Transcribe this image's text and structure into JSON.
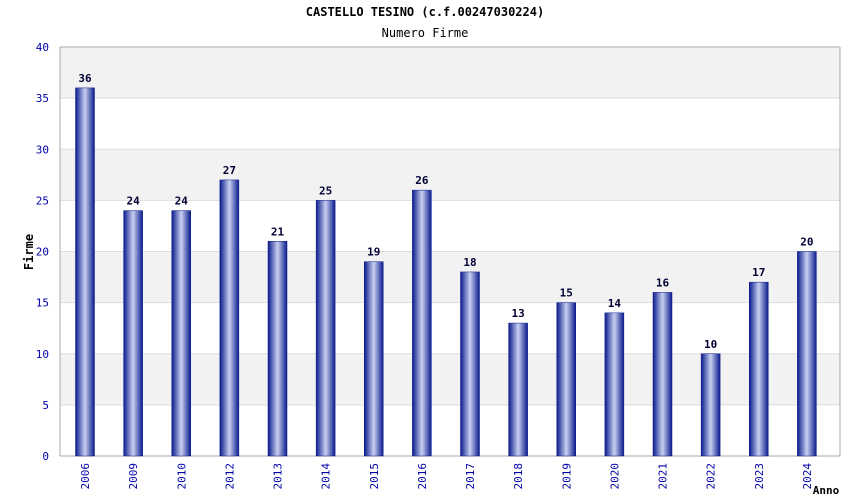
{
  "chart_data": {
    "type": "bar",
    "title": "CASTELLO TESINO (c.f.00247030224)",
    "subtitle": "Numero Firme",
    "xlabel": "Anno",
    "ylabel": "Firme",
    "ylim": [
      0,
      40
    ],
    "yticks": [
      0,
      5,
      10,
      15,
      20,
      25,
      30,
      35,
      40
    ],
    "categories": [
      "2006",
      "2009",
      "2010",
      "2012",
      "2013",
      "2014",
      "2015",
      "2016",
      "2017",
      "2018",
      "2019",
      "2020",
      "2021",
      "2022",
      "2023",
      "2024"
    ],
    "values": [
      36,
      24,
      24,
      27,
      21,
      25,
      19,
      26,
      18,
      13,
      15,
      14,
      16,
      10,
      17,
      20
    ],
    "grid": true,
    "colors": {
      "bar_dark": "#0a1a8c",
      "bar_light": "#c8d0f0",
      "tick_label": "#0000aa",
      "band": "#f2f2f2",
      "gridline": "#dddddd",
      "axis": "#aaaaaa"
    }
  }
}
